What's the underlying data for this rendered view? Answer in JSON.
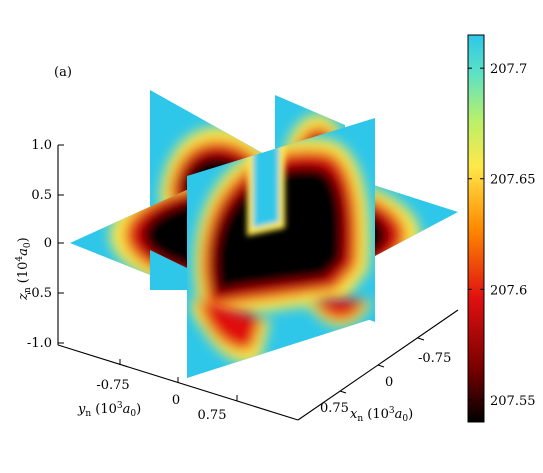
{
  "panel_label": "(a)",
  "chart_data": {
    "type": "heatmap",
    "subtype": "3d-orthogonal-slices",
    "title": "",
    "z_axis": {
      "label_main": "z",
      "label_sub": "n",
      "label_unit_prefix": " (10",
      "label_unit_exp": "4",
      "label_unit_var": "a",
      "label_unit_sub": "0",
      "label_unit_suffix": ")",
      "ticks": [
        "1.0",
        "0.5",
        "0",
        "-0.5",
        "-1.0"
      ],
      "range": [
        -1.0,
        1.0
      ]
    },
    "y_axis": {
      "label_main": "y",
      "label_sub": "n",
      "label_unit_prefix": " (10",
      "label_unit_exp": "3",
      "label_unit_var": "a",
      "label_unit_sub": "0",
      "label_unit_suffix": ")",
      "ticks": [
        "-0.75",
        "0",
        "0.75"
      ]
    },
    "x_axis": {
      "label_main": "x",
      "label_sub": "n",
      "label_unit_prefix": " (10",
      "label_unit_exp": "3",
      "label_unit_var": "a",
      "label_unit_sub": "0",
      "label_unit_suffix": ")",
      "ticks": [
        "-0.75",
        "0",
        "0.75"
      ]
    },
    "colorbar": {
      "ticks": [
        "207.7",
        "207.65",
        "207.6",
        "207.55"
      ],
      "values": [
        207.7,
        207.65,
        207.6,
        207.55
      ],
      "range": [
        207.54,
        207.715
      ],
      "colormap": [
        "#000000",
        "#7a0000",
        "#e01010",
        "#ff8a00",
        "#ffe84a",
        "#b9f06a",
        "#5de2c4",
        "#2ec7ea"
      ]
    },
    "colors": {
      "background_field": "#2ec7ea",
      "ring_outer": "#ffe84a",
      "ring_mid": "#e01010",
      "ring_inner": "#000000"
    }
  }
}
